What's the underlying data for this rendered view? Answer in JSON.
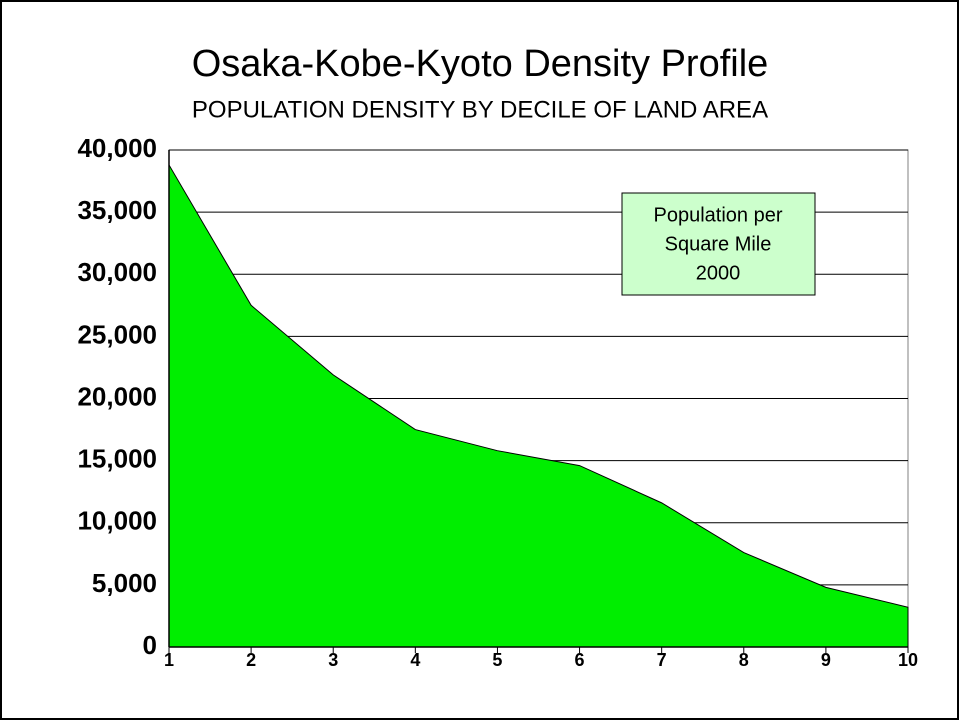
{
  "chart_data": {
    "type": "area",
    "title": "Osaka-Kobe-Kyoto Density Profile",
    "subtitle": "POPULATION DENSITY BY DECILE OF LAND AREA",
    "categories": [
      "1",
      "2",
      "3",
      "4",
      "5",
      "6",
      "7",
      "8",
      "9",
      "10"
    ],
    "series": [
      {
        "name": "Population per Square Mile 2000",
        "color": "#00ee00",
        "values": [
          38800,
          27500,
          21900,
          17500,
          15800,
          14600,
          11600,
          7600,
          4800,
          3200
        ]
      }
    ],
    "annotation": [
      "Population per",
      "Square Mile",
      "2000"
    ],
    "ylim": [
      0,
      40000
    ],
    "yticks": [
      0,
      {
        "value": 5000,
        "label": "5,000"
      },
      {
        "value": 10000,
        "label": "10,000"
      },
      {
        "value": 15000,
        "label": "15,000"
      },
      {
        "value": 20000,
        "label": "20,000"
      },
      {
        "value": 25000,
        "label": "25,000"
      },
      {
        "value": 30000,
        "label": "30,000"
      },
      {
        "value": 35000,
        "label": "35,000"
      },
      {
        "value": 40000,
        "label": "40,000"
      }
    ],
    "grid": true
  }
}
